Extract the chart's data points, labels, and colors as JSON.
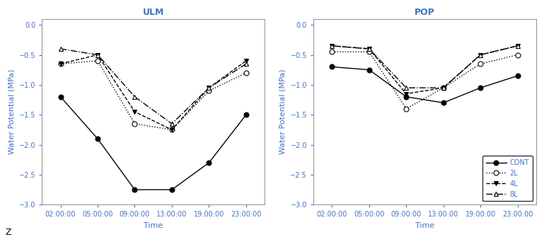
{
  "xtick_labels": [
    "02:00:00",
    "05:00:00",
    "09:00:00",
    "13:00:00",
    "19:00:00",
    "23:00:00"
  ],
  "xtick_positions": [
    0,
    1,
    2,
    3,
    4,
    5
  ],
  "ulm": {
    "title": "ULM",
    "ylabel": "Water Potential (MPa)",
    "xlabel": "Time",
    "ylim": [
      -3.0,
      0.1
    ],
    "yticks": [
      0.0,
      -0.5,
      -1.0,
      -1.5,
      -2.0,
      -2.5,
      -3.0
    ],
    "CONT": [
      -1.2,
      -1.9,
      -2.75,
      -2.75,
      -2.3,
      -1.5
    ],
    "2L": [
      -0.65,
      -0.6,
      -1.65,
      -1.75,
      -1.1,
      -0.8
    ],
    "4L": [
      -0.65,
      -0.5,
      -1.45,
      -1.75,
      -1.05,
      -0.6
    ],
    "8L": [
      -0.4,
      -0.5,
      -1.2,
      -1.65,
      -1.05,
      -0.65
    ]
  },
  "pop": {
    "title": "POP",
    "ylabel": "Water Potential (MPa)",
    "xlabel": "Time",
    "ylim": [
      -3.0,
      0.1
    ],
    "yticks": [
      0.0,
      -0.5,
      -1.0,
      -1.5,
      -2.0,
      -2.5,
      -3.0
    ],
    "CONT": [
      -0.7,
      -0.75,
      -1.2,
      -1.3,
      -1.05,
      -0.85
    ],
    "2L": [
      -0.45,
      -0.45,
      -1.4,
      -1.05,
      -0.65,
      -0.5
    ],
    "4L": [
      -0.35,
      -0.4,
      -1.15,
      -1.05,
      -0.5,
      -0.35
    ],
    "8L": [
      -0.35,
      -0.4,
      -1.05,
      -1.05,
      -0.5,
      -0.35
    ]
  },
  "series": [
    {
      "key": "CONT",
      "label": "CONT",
      "marker": "o",
      "mfc": "black",
      "mec": "black",
      "ls": "-",
      "lw": 1.0,
      "ms": 5
    },
    {
      "key": "2L",
      "label": "2L",
      "marker": "o",
      "mfc": "white",
      "mec": "black",
      "ls": ":",
      "lw": 1.0,
      "ms": 5
    },
    {
      "key": "4L",
      "label": "4L",
      "marker": "v",
      "mfc": "black",
      "mec": "black",
      "ls": "--",
      "lw": 1.0,
      "ms": 5
    },
    {
      "key": "8L",
      "label": "8L",
      "marker": "^",
      "mfc": "white",
      "mec": "black",
      "ls": "-.",
      "lw": 1.0,
      "ms": 5
    }
  ],
  "title_color": "#4472C4",
  "axis_label_color": "#4472C4",
  "tick_color": "#4472C4",
  "legend_label_color": "#4472C4",
  "spine_color": "#999999",
  "bg_color": "white",
  "tick_fontsize": 7,
  "label_fontsize": 8,
  "title_fontsize": 9
}
